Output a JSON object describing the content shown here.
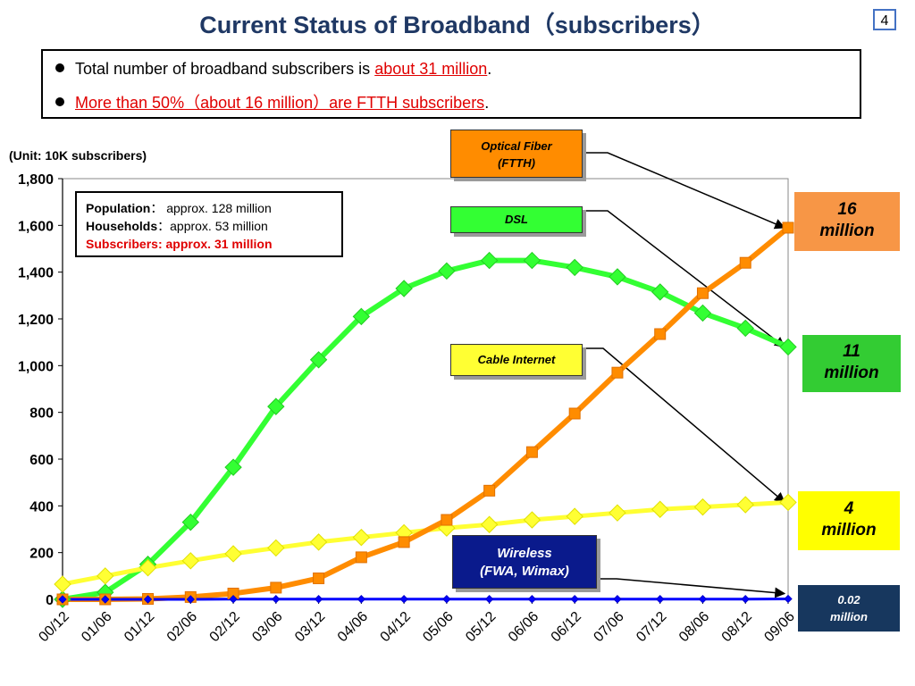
{
  "slide": {
    "title": "Current Status of Broadband（subscribers）",
    "page_number": "4",
    "bullets": [
      {
        "prefix": "Total number of broadband subscribers is ",
        "highlight": "about 31 million",
        "suffix": "."
      },
      {
        "prefix": "",
        "highlight": "More than 50%（about 16 million）are FTTH subscribers",
        "suffix": "."
      }
    ],
    "unit_label": "(Unit: 10K subscribers)",
    "info_box": {
      "population_label": "Population",
      "population_value": "：   approx. 128 million",
      "households_label": "Households",
      "households_value": "：approx.   53 million",
      "subscribers_label": "Subscribers",
      "subscribers_value": ":   approx.  31 million"
    },
    "series_labels": {
      "ftth": "Optical Fiber (FTTH)",
      "ftth_line1": "Optical Fiber",
      "ftth_line2": "(FTTH)",
      "dsl": "DSL",
      "cable": "Cable Internet",
      "wireless_line1": "Wireless",
      "wireless_line2": "(FWA, Wimax)"
    },
    "callouts": {
      "ftth": {
        "value": "16",
        "unit": "million",
        "color": "#f79646"
      },
      "dsl": {
        "value": "11",
        "unit": "million",
        "color": "#33cc33"
      },
      "cable": {
        "value": "4",
        "unit": "million",
        "color": "#ffff00"
      },
      "wireless": {
        "value": "0.02",
        "unit": "million",
        "color": "#17375e"
      }
    }
  },
  "chart_data": {
    "type": "line",
    "x": [
      "00/12",
      "01/06",
      "01/12",
      "02/06",
      "02/12",
      "03/06",
      "03/12",
      "04/06",
      "04/12",
      "05/06",
      "05/12",
      "06/06",
      "06/12",
      "07/06",
      "07/12",
      "08/06",
      "08/12",
      "09/06"
    ],
    "ylim": [
      0,
      1800
    ],
    "yticks": [
      "0",
      "200",
      "400",
      "600",
      "800",
      "1,000",
      "1,200",
      "1,400",
      "1,600",
      "1,800"
    ],
    "series": [
      {
        "name": "DSL",
        "color": "#33ff33",
        "marker": "diamond",
        "values": [
          0,
          30,
          150,
          330,
          565,
          825,
          1025,
          1210,
          1330,
          1405,
          1450,
          1450,
          1420,
          1380,
          1315,
          1225,
          1160,
          1080
        ]
      },
      {
        "name": "Cable Internet",
        "color": "#ffff33",
        "marker": "diamond",
        "values": [
          65,
          100,
          135,
          165,
          195,
          220,
          245,
          265,
          285,
          305,
          320,
          340,
          355,
          370,
          385,
          395,
          405,
          415
        ]
      },
      {
        "name": "Optical Fiber (FTTH)",
        "color": "#ff8c00",
        "marker": "square",
        "values": [
          0,
          0,
          2,
          10,
          25,
          50,
          90,
          180,
          245,
          340,
          465,
          630,
          795,
          970,
          1135,
          1310,
          1440,
          1590
        ]
      },
      {
        "name": "Wireless (FWA, Wimax)",
        "color": "#0000ff",
        "marker": "diamond",
        "values": [
          0,
          0,
          0,
          0,
          1,
          1,
          1,
          1,
          1,
          1,
          1,
          1,
          1,
          1,
          1,
          1,
          1,
          2
        ]
      }
    ]
  }
}
